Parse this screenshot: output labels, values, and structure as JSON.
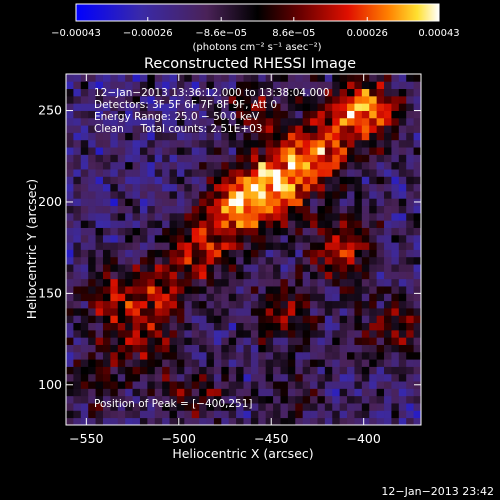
{
  "chart_data": {
    "type": "heatmap",
    "title": "Reconstructed RHESSI Image",
    "xlabel": "Heliocentric X (arcsec)",
    "ylabel": "Heliocentric Y (arcsec)",
    "xlim": [
      -561,
      -369
    ],
    "ylim": [
      78,
      270
    ],
    "x_ticks": [
      -550,
      -500,
      -450,
      -400
    ],
    "y_ticks": [
      100,
      150,
      200,
      250
    ],
    "colorbar": {
      "range": [
        -0.00043,
        0.00043
      ],
      "tick_values": [
        -0.00043,
        -0.00026,
        -8.6e-05,
        8.6e-05,
        0.00026,
        0.00043
      ],
      "tick_labels": [
        "−0.00043",
        "−0.00026",
        "−8.6e−05",
        "8.6e−05",
        "0.00026",
        "0.00043"
      ],
      "unit_label": "(photons cm⁻² s⁻¹ asec⁻²)"
    },
    "annotations": [
      "12−Jan−2013 13:36:12.000 to 13:38:04.000",
      "Detectors: 3F 5F 6F 7F 8F 9F, Att 0",
      "Energy Range: 25.0 − 50.0 keV",
      "Clean     Total counts: 2.51E+03"
    ],
    "peak_text": "Position of Peak = [−400,251]",
    "peak": [
      -400,
      251
    ],
    "hotspots": [
      {
        "x": -447,
        "y": 211,
        "value": 0.00043
      },
      {
        "x": -468,
        "y": 197,
        "value": 0.0004
      },
      {
        "x": -425,
        "y": 228,
        "value": 0.00038
      },
      {
        "x": -400,
        "y": 251,
        "value": 0.00043
      },
      {
        "x": -412,
        "y": 176,
        "value": 0.0003
      },
      {
        "x": -488,
        "y": 174,
        "value": 0.0003
      },
      {
        "x": -510,
        "y": 150,
        "value": 0.00025
      },
      {
        "x": -537,
        "y": 148,
        "value": 0.00022
      },
      {
        "x": -520,
        "y": 122,
        "value": 0.0002
      },
      {
        "x": -490,
        "y": 95,
        "value": 0.00018
      },
      {
        "x": -545,
        "y": 100,
        "value": 0.00015
      },
      {
        "x": -443,
        "y": 140,
        "value": 0.00022
      },
      {
        "x": -458,
        "y": 250,
        "value": 0.00018
      },
      {
        "x": -385,
        "y": 130,
        "value": 0.00024
      },
      {
        "x": -440,
        "y": 97,
        "value": 0.00012
      }
    ]
  },
  "footer_timestamp": "12−Jan−2013 23:42"
}
